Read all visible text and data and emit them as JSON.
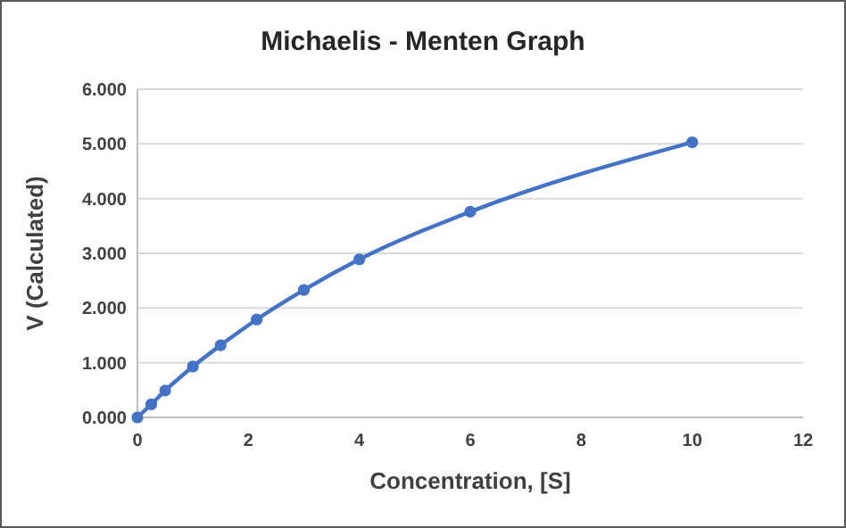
{
  "chart_data": {
    "type": "line",
    "title": "Michaelis - Menten Graph",
    "xlabel": "Concentration, [S]",
    "ylabel": "V (Calculated)",
    "x": [
      0,
      0.25,
      0.5,
      1,
      1.5,
      2.15,
      3,
      4,
      6,
      10
    ],
    "series": [
      {
        "color": "#4472c4",
        "values": [
          0,
          0.24,
          0.49,
          0.93,
          1.32,
          1.79,
          2.33,
          2.89,
          3.76,
          5.03
        ]
      }
    ],
    "xlim": [
      0,
      12
    ],
    "xticks": [
      0,
      2,
      4,
      6,
      8,
      10,
      12
    ],
    "ylim": [
      0,
      6
    ],
    "yticks": [
      {
        "value": 0,
        "label": "0.000"
      },
      {
        "value": 1,
        "label": "1.000"
      },
      {
        "value": 2,
        "label": "2.000"
      },
      {
        "value": 3,
        "label": "3.000"
      },
      {
        "value": 4,
        "label": "4.000"
      },
      {
        "value": 5,
        "label": "5.000"
      },
      {
        "value": 6,
        "label": "6.000"
      }
    ],
    "grid": "y",
    "marker": "circle",
    "line_style": "solid"
  }
}
